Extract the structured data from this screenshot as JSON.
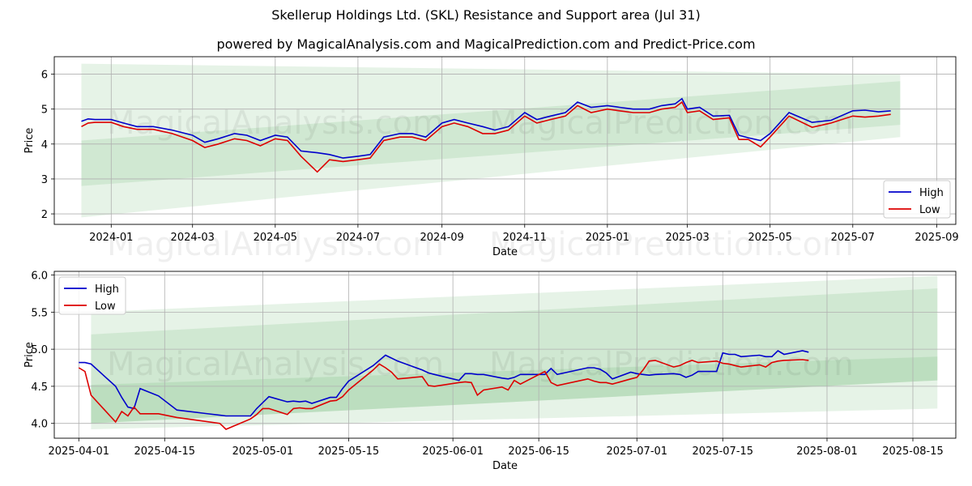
{
  "title": "Skellerup Holdings Ltd. (SKL) Resistance and Support area (Jul 31)",
  "subtitle": "powered by MagicalAnalysis.com and MagicalPrediction.com and Predict-Price.com",
  "watermarks": [
    "MagicalAnalysis.com",
    "MagicalPrediction.com"
  ],
  "colors": {
    "high": "#0000cc",
    "low": "#dd0000",
    "band": "#2e9e3a",
    "grid": "#b0b0b0"
  },
  "chart_data": [
    {
      "type": "line",
      "xlabel": "Date",
      "ylabel": "Price",
      "xlim": [
        "2023-11-20",
        "2025-09-15"
      ],
      "ylim": [
        1.7,
        6.5
      ],
      "x_ticks": [
        "2024-01",
        "2024-03",
        "2024-05",
        "2024-07",
        "2024-09",
        "2024-11",
        "2025-01",
        "2025-03",
        "2025-05",
        "2025-07",
        "2025-09"
      ],
      "y_ticks": [
        "2",
        "3",
        "4",
        "5",
        "6"
      ],
      "legend": "lower-right",
      "series": [
        {
          "name": "High",
          "x": [
            "2023-12-10",
            "2023-12-15",
            "2023-12-20",
            "2024-01-01",
            "2024-01-10",
            "2024-01-20",
            "2024-02-01",
            "2024-02-15",
            "2024-03-01",
            "2024-03-10",
            "2024-03-20",
            "2024-04-01",
            "2024-04-10",
            "2024-04-20",
            "2024-05-01",
            "2024-05-10",
            "2024-05-20",
            "2024-06-01",
            "2024-06-10",
            "2024-06-20",
            "2024-07-01",
            "2024-07-10",
            "2024-07-20",
            "2024-08-01",
            "2024-08-10",
            "2024-08-20",
            "2024-09-01",
            "2024-09-10",
            "2024-09-20",
            "2024-10-01",
            "2024-10-10",
            "2024-10-20",
            "2024-11-01",
            "2024-11-10",
            "2024-11-20",
            "2024-12-01",
            "2024-12-10",
            "2024-12-20",
            "2025-01-01",
            "2025-01-10",
            "2025-01-20",
            "2025-02-01",
            "2025-02-10",
            "2025-02-20",
            "2025-02-25",
            "2025-03-01",
            "2025-03-10",
            "2025-03-20",
            "2025-04-01",
            "2025-04-08",
            "2025-04-15",
            "2025-04-24",
            "2025-05-01",
            "2025-05-15",
            "2025-06-01",
            "2025-06-15",
            "2025-07-01",
            "2025-07-10",
            "2025-07-20",
            "2025-07-29"
          ],
          "values": [
            4.65,
            4.72,
            4.7,
            4.7,
            4.6,
            4.5,
            4.5,
            4.4,
            4.25,
            4.05,
            4.15,
            4.3,
            4.25,
            4.1,
            4.25,
            4.2,
            3.8,
            3.75,
            3.7,
            3.6,
            3.65,
            3.7,
            4.2,
            4.3,
            4.3,
            4.2,
            4.6,
            4.7,
            4.6,
            4.5,
            4.4,
            4.5,
            4.9,
            4.7,
            4.8,
            4.9,
            5.2,
            5.05,
            5.1,
            5.05,
            5.0,
            5.0,
            5.1,
            5.15,
            5.3,
            5.0,
            5.05,
            4.8,
            4.82,
            4.25,
            4.18,
            4.1,
            4.3,
            4.9,
            4.62,
            4.68,
            4.95,
            4.97,
            4.92,
            4.95
          ]
        },
        {
          "name": "Low",
          "x": [
            "2023-12-10",
            "2023-12-15",
            "2023-12-20",
            "2024-01-01",
            "2024-01-10",
            "2024-01-20",
            "2024-02-01",
            "2024-02-15",
            "2024-03-01",
            "2024-03-10",
            "2024-03-20",
            "2024-04-01",
            "2024-04-10",
            "2024-04-20",
            "2024-05-01",
            "2024-05-10",
            "2024-05-20",
            "2024-06-01",
            "2024-06-10",
            "2024-06-20",
            "2024-07-01",
            "2024-07-10",
            "2024-07-20",
            "2024-08-01",
            "2024-08-10",
            "2024-08-20",
            "2024-09-01",
            "2024-09-10",
            "2024-09-20",
            "2024-10-01",
            "2024-10-10",
            "2024-10-20",
            "2024-11-01",
            "2024-11-10",
            "2024-11-20",
            "2024-12-01",
            "2024-12-10",
            "2024-12-20",
            "2025-01-01",
            "2025-01-10",
            "2025-01-20",
            "2025-02-01",
            "2025-02-10",
            "2025-02-20",
            "2025-02-25",
            "2025-03-01",
            "2025-03-10",
            "2025-03-20",
            "2025-04-01",
            "2025-04-08",
            "2025-04-15",
            "2025-04-24",
            "2025-05-01",
            "2025-05-15",
            "2025-06-01",
            "2025-06-15",
            "2025-07-01",
            "2025-07-10",
            "2025-07-20",
            "2025-07-29"
          ],
          "values": [
            4.5,
            4.6,
            4.62,
            4.62,
            4.5,
            4.42,
            4.42,
            4.3,
            4.1,
            3.9,
            4.0,
            4.15,
            4.1,
            3.95,
            4.15,
            4.1,
            3.65,
            3.2,
            3.55,
            3.5,
            3.55,
            3.6,
            4.1,
            4.2,
            4.2,
            4.1,
            4.5,
            4.6,
            4.5,
            4.3,
            4.3,
            4.4,
            4.8,
            4.6,
            4.7,
            4.8,
            5.1,
            4.9,
            5.0,
            4.95,
            4.9,
            4.9,
            5.0,
            5.05,
            5.2,
            4.9,
            4.95,
            4.7,
            4.75,
            4.13,
            4.13,
            3.92,
            4.2,
            4.8,
            4.48,
            4.6,
            4.8,
            4.77,
            4.8,
            4.85
          ]
        }
      ],
      "bands": [
        {
          "x": [
            "2023-12-10",
            "2025-08-05"
          ],
          "upper": [
            6.3,
            6.0
          ],
          "lower": [
            1.9,
            4.2
          ]
        },
        {
          "x": [
            "2023-12-10",
            "2025-08-05"
          ],
          "upper": [
            4.1,
            5.8
          ],
          "lower": [
            2.8,
            4.55
          ]
        }
      ]
    },
    {
      "type": "line",
      "xlabel": "Date",
      "ylabel": "Price",
      "xlim": [
        "2025-03-28",
        "2025-08-22"
      ],
      "ylim": [
        3.8,
        6.05
      ],
      "x_ticks": [
        "2025-04-01",
        "2025-04-15",
        "2025-05-01",
        "2025-05-15",
        "2025-06-01",
        "2025-06-15",
        "2025-07-01",
        "2025-07-15",
        "2025-08-01",
        "2025-08-15"
      ],
      "y_ticks": [
        "4.0",
        "4.5",
        "5.0",
        "5.5",
        "6.0"
      ],
      "legend": "upper-left",
      "series": [
        {
          "name": "High",
          "x": [
            "2025-04-01",
            "2025-04-02",
            "2025-04-03",
            "2025-04-07",
            "2025-04-08",
            "2025-04-09",
            "2025-04-10",
            "2025-04-11",
            "2025-04-14",
            "2025-04-17",
            "2025-04-24",
            "2025-04-25",
            "2025-04-29",
            "2025-04-30",
            "2025-05-01",
            "2025-05-02",
            "2025-05-05",
            "2025-05-06",
            "2025-05-07",
            "2025-05-08",
            "2025-05-09",
            "2025-05-12",
            "2025-05-13",
            "2025-05-14",
            "2025-05-15",
            "2025-05-19",
            "2025-05-20",
            "2025-05-21",
            "2025-05-22",
            "2025-05-23",
            "2025-05-27",
            "2025-05-28",
            "2025-05-29",
            "2025-06-02",
            "2025-06-03",
            "2025-06-04",
            "2025-06-05",
            "2025-06-06",
            "2025-06-09",
            "2025-06-10",
            "2025-06-11",
            "2025-06-12",
            "2025-06-16",
            "2025-06-17",
            "2025-06-18",
            "2025-06-23",
            "2025-06-24",
            "2025-06-25",
            "2025-06-26",
            "2025-06-27",
            "2025-06-30",
            "2025-07-01",
            "2025-07-02",
            "2025-07-03",
            "2025-07-04",
            "2025-07-07",
            "2025-07-08",
            "2025-07-09",
            "2025-07-10",
            "2025-07-11",
            "2025-07-14",
            "2025-07-15",
            "2025-07-16",
            "2025-07-17",
            "2025-07-18",
            "2025-07-21",
            "2025-07-22",
            "2025-07-23",
            "2025-07-24",
            "2025-07-25",
            "2025-07-28",
            "2025-07-29"
          ],
          "values": [
            4.82,
            4.82,
            4.8,
            4.5,
            4.35,
            4.22,
            4.2,
            4.47,
            4.37,
            4.18,
            4.11,
            4.1,
            4.1,
            4.2,
            4.28,
            4.36,
            4.29,
            4.3,
            4.29,
            4.3,
            4.27,
            4.35,
            4.35,
            4.47,
            4.57,
            4.78,
            4.85,
            4.92,
            4.88,
            4.84,
            4.72,
            4.68,
            4.66,
            4.58,
            4.67,
            4.67,
            4.66,
            4.66,
            4.61,
            4.6,
            4.62,
            4.66,
            4.66,
            4.74,
            4.66,
            4.75,
            4.75,
            4.73,
            4.68,
            4.6,
            4.69,
            4.67,
            4.66,
            4.65,
            4.66,
            4.67,
            4.66,
            4.62,
            4.65,
            4.7,
            4.7,
            4.95,
            4.93,
            4.93,
            4.9,
            4.92,
            4.9,
            4.9,
            4.98,
            4.93,
            4.98,
            4.96
          ]
        },
        {
          "name": "Low",
          "x": [
            "2025-04-01",
            "2025-04-02",
            "2025-04-03",
            "2025-04-07",
            "2025-04-08",
            "2025-04-09",
            "2025-04-10",
            "2025-04-11",
            "2025-04-14",
            "2025-04-17",
            "2025-04-24",
            "2025-04-25",
            "2025-04-29",
            "2025-04-30",
            "2025-05-01",
            "2025-05-02",
            "2025-05-05",
            "2025-05-06",
            "2025-05-07",
            "2025-05-08",
            "2025-05-09",
            "2025-05-12",
            "2025-05-13",
            "2025-05-14",
            "2025-05-15",
            "2025-05-19",
            "2025-05-20",
            "2025-05-21",
            "2025-05-22",
            "2025-05-23",
            "2025-05-27",
            "2025-05-28",
            "2025-05-29",
            "2025-06-02",
            "2025-06-03",
            "2025-06-04",
            "2025-06-05",
            "2025-06-06",
            "2025-06-09",
            "2025-06-10",
            "2025-06-11",
            "2025-06-12",
            "2025-06-16",
            "2025-06-17",
            "2025-06-18",
            "2025-06-23",
            "2025-06-24",
            "2025-06-25",
            "2025-06-26",
            "2025-06-27",
            "2025-06-30",
            "2025-07-01",
            "2025-07-02",
            "2025-07-03",
            "2025-07-04",
            "2025-07-07",
            "2025-07-08",
            "2025-07-09",
            "2025-07-10",
            "2025-07-11",
            "2025-07-14",
            "2025-07-15",
            "2025-07-16",
            "2025-07-17",
            "2025-07-18",
            "2025-07-21",
            "2025-07-22",
            "2025-07-23",
            "2025-07-24",
            "2025-07-25",
            "2025-07-28",
            "2025-07-29"
          ],
          "values": [
            4.75,
            4.7,
            4.38,
            4.02,
            4.16,
            4.1,
            4.22,
            4.13,
            4.13,
            4.08,
            4.0,
            3.92,
            4.06,
            4.12,
            4.2,
            4.2,
            4.12,
            4.2,
            4.21,
            4.2,
            4.2,
            4.3,
            4.31,
            4.36,
            4.45,
            4.72,
            4.8,
            4.75,
            4.69,
            4.6,
            4.63,
            4.51,
            4.5,
            4.55,
            4.56,
            4.55,
            4.38,
            4.45,
            4.49,
            4.45,
            4.58,
            4.53,
            4.7,
            4.55,
            4.51,
            4.6,
            4.57,
            4.55,
            4.55,
            4.53,
            4.6,
            4.62,
            4.72,
            4.84,
            4.85,
            4.76,
            4.78,
            4.82,
            4.85,
            4.82,
            4.84,
            4.81,
            4.8,
            4.78,
            4.76,
            4.79,
            4.76,
            4.82,
            4.84,
            4.85,
            4.86,
            4.85
          ]
        }
      ],
      "bands": [
        {
          "x": [
            "2025-04-03",
            "2025-08-19"
          ],
          "upper": [
            5.5,
            5.99
          ],
          "lower": [
            3.92,
            4.2
          ]
        },
        {
          "x": [
            "2025-04-03",
            "2025-08-19"
          ],
          "upper": [
            5.2,
            5.82
          ],
          "lower": [
            4.0,
            4.58
          ]
        },
        {
          "x": [
            "2025-04-03",
            "2025-08-19"
          ],
          "upper": [
            4.52,
            4.9
          ],
          "lower": [
            4.0,
            4.58
          ]
        }
      ]
    }
  ]
}
